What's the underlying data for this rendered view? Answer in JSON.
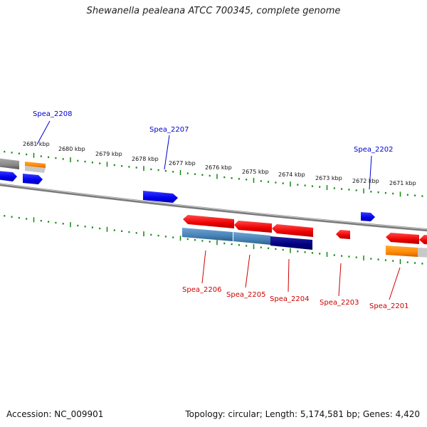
{
  "title": "Shewanella pealeana ATCC 700345, complete genome",
  "footer": {
    "accession": "Accession: NC_009901",
    "topology": "Topology: circular; Length: 5,174,581 bp; Genes: 4,420"
  },
  "kbp_labels": [
    "2681 kbp",
    "2680 kbp",
    "2679 kbp",
    "2678 kbp",
    "2677 kbp",
    "2676 kbp",
    "2675 kbp",
    "2674 kbp",
    "2673 kbp",
    "2672 kbp",
    "2671 kbp"
  ],
  "forward_genes": [
    "Spea_2208",
    "Spea_2207",
    "Spea_2202"
  ],
  "reverse_genes": [
    "Spea_2206",
    "Spea_2205",
    "Spea_2204",
    "Spea_2203",
    "Spea_2201"
  ],
  "colors": {
    "forward_label": "#0000cc",
    "reverse_label": "#cc0000",
    "forward_gene": "#0000ee",
    "reverse_gene": "#ee0000",
    "orange_gene": "#ff8800",
    "steelblue_gene": "#4682b4",
    "navy_gene": "#000080",
    "tick": "#118811",
    "backbone": "#888888"
  }
}
